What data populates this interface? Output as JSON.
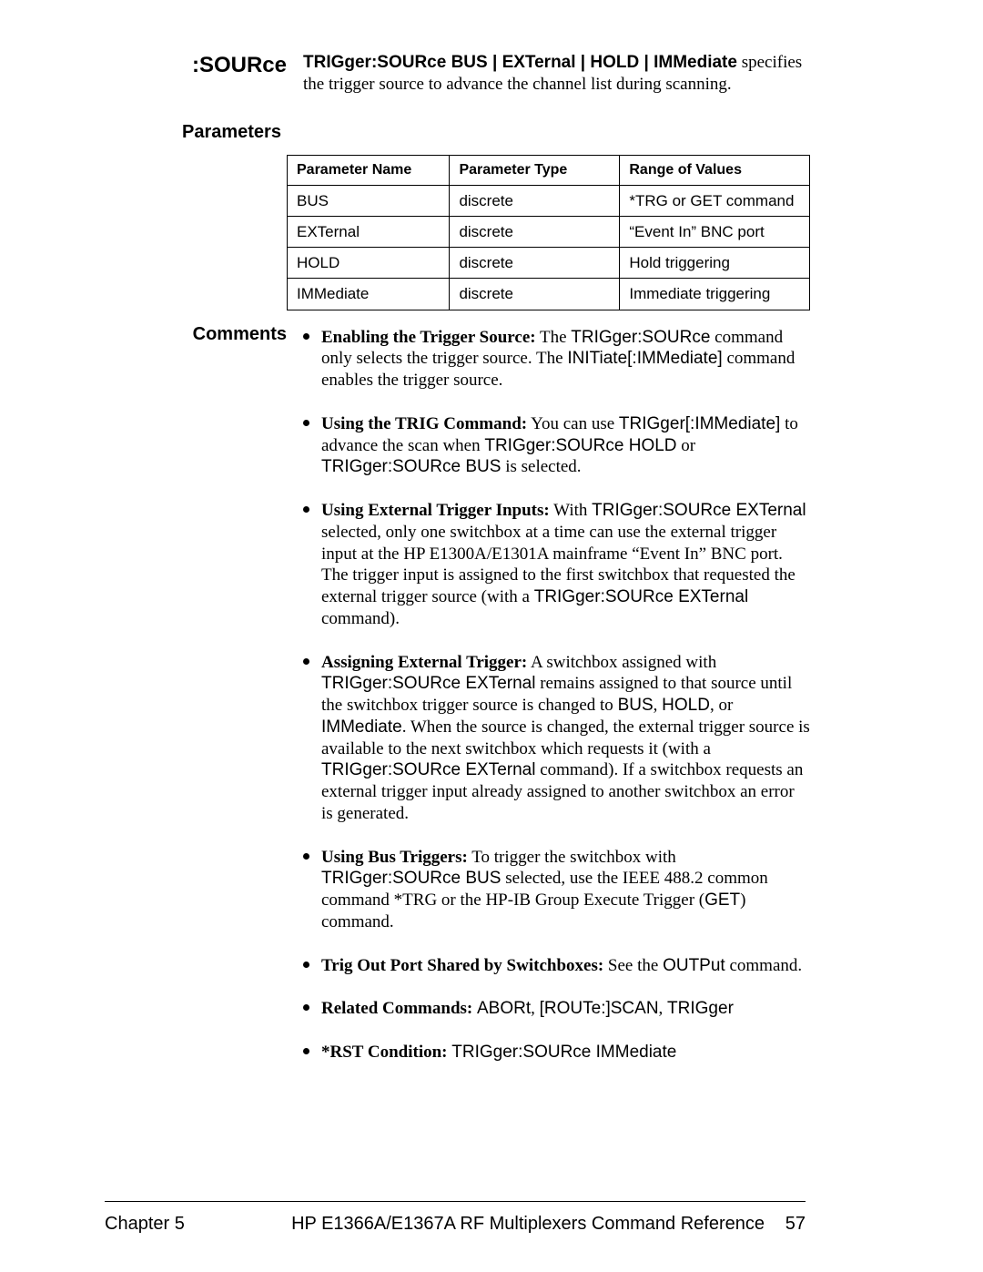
{
  "heading": ":SOURce",
  "syntax_bold": "TRIGger:SOURce BUS | EXTernal | HOLD | IMMediate",
  "syntax_tail": " specifies the trigger source to advance the channel list during scanning.",
  "sections": {
    "parameters_label": "Parameters",
    "comments_label": "Comments"
  },
  "table": {
    "columns": [
      "Parameter Name",
      "Parameter Type",
      "Range of Values"
    ],
    "rows": [
      [
        "BUS",
        "discrete",
        "*TRG or GET command"
      ],
      [
        "EXTernal",
        "discrete",
        "“Event In”  BNC port"
      ],
      [
        "HOLD",
        "discrete",
        "Hold triggering"
      ],
      [
        "IMMediate",
        "discrete",
        "Immediate triggering"
      ]
    ],
    "col_widths": [
      "170px",
      "180px",
      "205px"
    ],
    "border_color": "#000000",
    "header_fontsize": 16,
    "cell_fontsize": 17,
    "font_family": "Arial"
  },
  "comments": [
    {
      "lead": "Enabling the Trigger Source:",
      "body_parts": [
        {
          "t": " The "
        },
        {
          "t": "TRIGger:SOURce",
          "sans": true
        },
        {
          "t": " command only selects the trigger source.  The "
        },
        {
          "t": "INITiate[:IMMediate]",
          "sans": true
        },
        {
          "t": " command enables the trigger source."
        }
      ]
    },
    {
      "lead": "Using the TRIG Command:",
      "body_parts": [
        {
          "t": " You can use "
        },
        {
          "t": "TRIGger[:IMMediate]",
          "sans": true
        },
        {
          "t": " to advance the scan when "
        },
        {
          "t": "TRIGger:SOURce HOLD",
          "sans": true
        },
        {
          "t": " or "
        },
        {
          "t": "TRIGger:SOURce BUS",
          "sans": true
        },
        {
          "t": " is selected."
        }
      ]
    },
    {
      "lead": "Using External Trigger Inputs:",
      "body_parts": [
        {
          "t": " With "
        },
        {
          "t": "TRIGger:SOURce EXTernal",
          "sans": true
        },
        {
          "t": " selected, only one switchbox at a time can use the external trigger input at the HP E1300A/E1301A mainframe “Event In”  BNC port. The trigger input is assigned to the first switchbox that requested the external trigger source (with a "
        },
        {
          "t": "TRIGger:SOURce EXTernal",
          "sans": true
        },
        {
          "t": " command)."
        }
      ]
    },
    {
      "lead": "Assigning External Trigger:",
      "body_parts": [
        {
          "t": " A switchbox assigned with "
        },
        {
          "t": "TRIGger:SOURce EXTernal",
          "sans": true
        },
        {
          "t": " remains assigned to that source until the switchbox trigger source is changed to "
        },
        {
          "t": "BUS",
          "sans": true
        },
        {
          "t": ", "
        },
        {
          "t": "HOLD",
          "sans": true
        },
        {
          "t": ", or "
        },
        {
          "t": "IMMediate",
          "sans": true
        },
        {
          "t": ". When the source is changed, the external trigger source is available to the next switchbox which requests it (with a "
        },
        {
          "t": "TRIGger:SOURce EXTernal",
          "sans": true
        },
        {
          "t": " command).  If a switchbox requests an external trigger input already assigned to another switchbox an error is generated."
        }
      ]
    },
    {
      "lead": "Using Bus Triggers:",
      "body_parts": [
        {
          "t": " To trigger the switchbox with "
        },
        {
          "t": "TRIGger:SOURce BUS",
          "sans": true
        },
        {
          "t": " selected, use the IEEE 488.2 common command *TRG or the HP-IB Group Execute Trigger ("
        },
        {
          "t": "GET",
          "sans": true
        },
        {
          "t": ") command."
        }
      ]
    },
    {
      "lead": "Trig Out Port Shared by Switchboxes:",
      "body_parts": [
        {
          "t": "  See the "
        },
        {
          "t": "OUTPut",
          "sans": true
        },
        {
          "t": " command."
        }
      ]
    },
    {
      "lead": "Related Commands:",
      "body_parts": [
        {
          "t": " "
        },
        {
          "t": "ABORt",
          "sans": true
        },
        {
          "t": ", "
        },
        {
          "t": "[ROUTe:]SCAN",
          "sans": true
        },
        {
          "t": ", "
        },
        {
          "t": "TRIGger",
          "sans": true
        }
      ]
    },
    {
      "lead": "*RST Condition:",
      "body_parts": [
        {
          "t": " "
        },
        {
          "t": "TRIGger:SOURce IMMediate",
          "sans": true
        }
      ]
    }
  ],
  "footer": {
    "left": "Chapter 5",
    "right_title": "HP E1366A/E1367A RF Multiplexers Command Reference",
    "page": "57"
  },
  "styles": {
    "page_bg": "#ffffff",
    "text_color": "#000000",
    "body_fontsize": 19,
    "heading_fontsize": 24,
    "section_label_fontsize": 20,
    "footer_fontsize": 20
  }
}
